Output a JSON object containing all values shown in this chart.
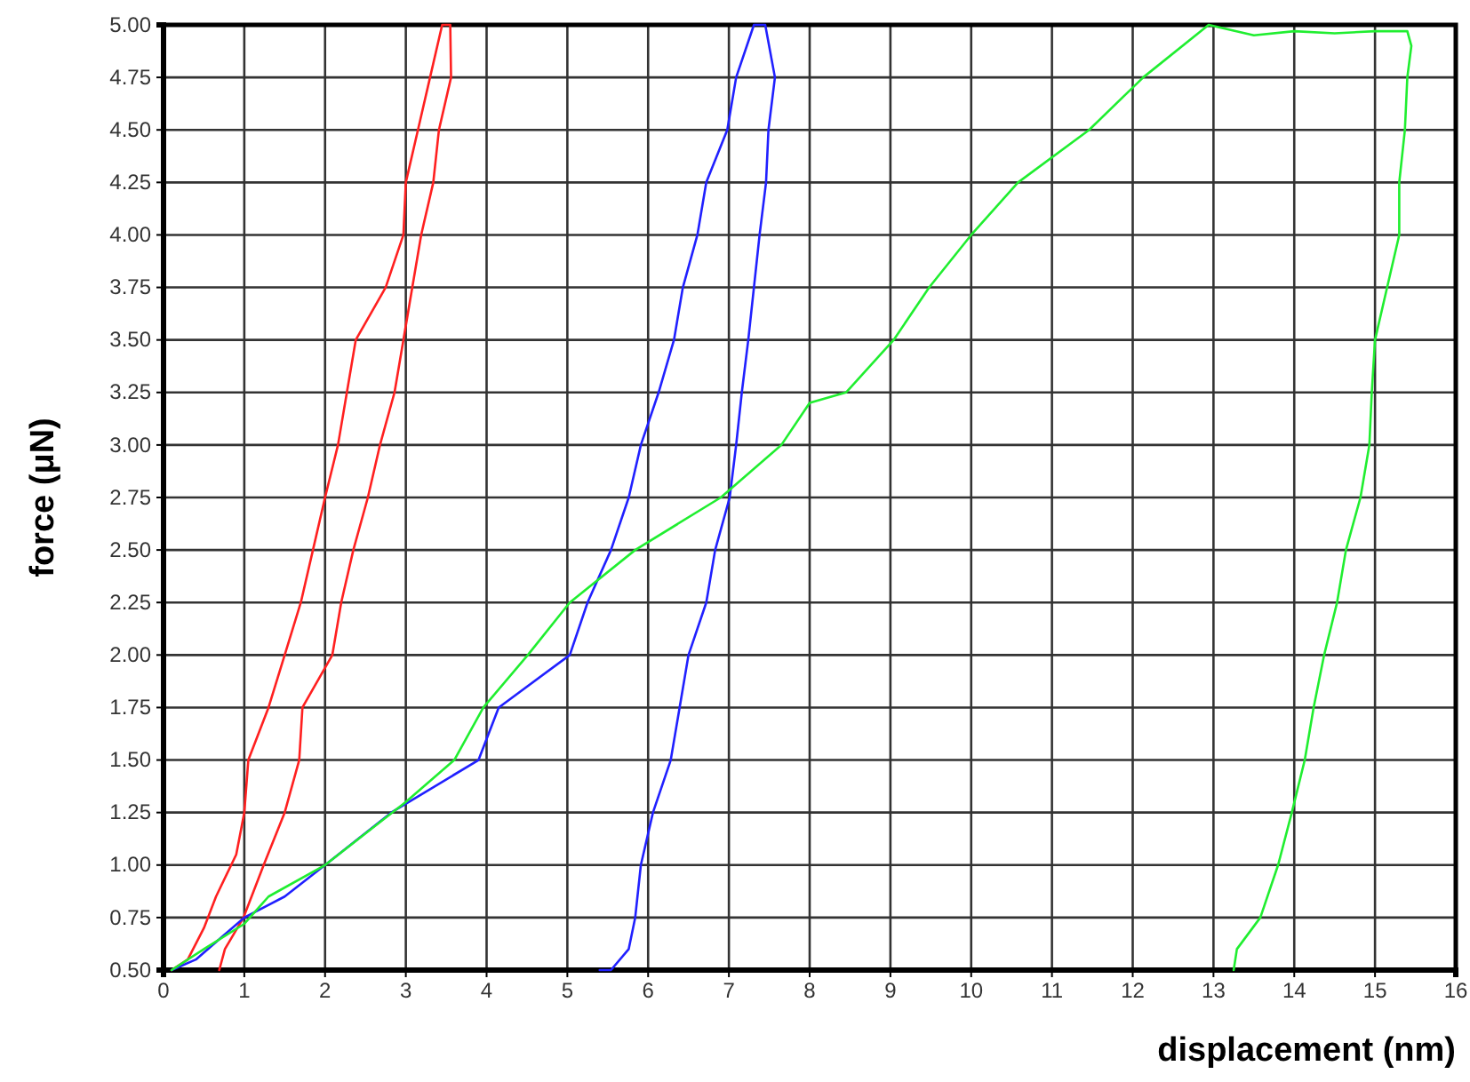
{
  "chart_data": {
    "type": "line",
    "xlabel": "displacement (nm)",
    "ylabel": "force (μN)",
    "xlim": [
      0,
      16
    ],
    "ylim": [
      0.5,
      5
    ],
    "xticks": [
      0,
      1,
      2,
      3,
      4,
      5,
      6,
      7,
      8,
      9,
      10,
      11,
      12,
      13,
      14,
      15,
      16
    ],
    "yticks": [
      {
        "value": 0.5,
        "label": "0.50"
      },
      {
        "value": 0.75,
        "label": "0.75"
      },
      {
        "value": 1,
        "label": "1.00"
      },
      {
        "value": 1.25,
        "label": "1.25"
      },
      {
        "value": 1.5,
        "label": "1.50"
      },
      {
        "value": 1.75,
        "label": "1.75"
      },
      {
        "value": 2,
        "label": "2.00"
      },
      {
        "value": 2.25,
        "label": "2.25"
      },
      {
        "value": 2.5,
        "label": "2.50"
      },
      {
        "value": 2.75,
        "label": "2.75"
      },
      {
        "value": 3,
        "label": "3.00"
      },
      {
        "value": 3.25,
        "label": "3.25"
      },
      {
        "value": 3.5,
        "label": "3.50"
      },
      {
        "value": 3.75,
        "label": "3.75"
      },
      {
        "value": 4,
        "label": "4.00"
      },
      {
        "value": 4.25,
        "label": "4.25"
      },
      {
        "value": 4.5,
        "label": "4.50"
      },
      {
        "value": 4.75,
        "label": "4.75"
      },
      {
        "value": 5,
        "label": "5.00"
      }
    ],
    "grid": true,
    "line_style": "solid",
    "marker": "none",
    "series": [
      {
        "color": "#ff2020",
        "x": [
          0.1,
          0.3,
          0.5,
          0.65,
          0.9,
          1.0,
          1.05,
          1.3,
          1.5,
          1.7,
          1.85,
          2.0,
          2.16,
          2.27,
          2.38,
          2.75,
          2.97,
          3.0,
          3.15,
          3.3,
          3.45,
          3.55,
          3.56,
          3.41,
          3.34,
          3.19,
          3.08,
          2.97,
          2.86,
          2.68,
          2.53,
          2.35,
          2.2,
          2.09,
          1.72,
          1.68,
          1.5,
          1.24,
          0.99,
          0.76,
          0.69
        ],
        "values": [
          0.5,
          0.55,
          0.7,
          0.85,
          1.05,
          1.25,
          1.5,
          1.75,
          2.0,
          2.25,
          2.5,
          2.75,
          3.0,
          3.25,
          3.5,
          3.75,
          4.0,
          4.25,
          4.5,
          4.75,
          5.0,
          5.0,
          4.75,
          4.5,
          4.25,
          4.0,
          3.75,
          3.5,
          3.25,
          3.0,
          2.75,
          2.5,
          2.25,
          2.0,
          1.75,
          1.5,
          1.25,
          1.0,
          0.75,
          0.6,
          0.5
        ]
      },
      {
        "color": "#2020ff",
        "x": [
          0.1,
          0.4,
          0.7,
          1.0,
          1.5,
          2.0,
          2.82,
          3.9,
          4.15,
          5.03,
          5.25,
          5.54,
          5.76,
          5.91,
          6.13,
          6.32,
          6.43,
          6.61,
          6.72,
          6.98,
          7.09,
          7.31,
          7.45,
          7.57,
          7.49,
          7.46,
          7.38,
          7.31,
          7.24,
          7.16,
          7.09,
          7.01,
          6.83,
          6.72,
          6.5,
          6.39,
          6.28,
          6.06,
          5.91,
          5.84,
          5.76,
          5.54,
          5.4
        ],
        "values": [
          0.5,
          0.55,
          0.65,
          0.75,
          0.85,
          1.0,
          1.25,
          1.5,
          1.75,
          2.0,
          2.25,
          2.5,
          2.75,
          3.0,
          3.25,
          3.5,
          3.75,
          4.0,
          4.25,
          4.5,
          4.75,
          5.0,
          5.0,
          4.75,
          4.5,
          4.25,
          4.0,
          3.75,
          3.5,
          3.25,
          3.0,
          2.75,
          2.5,
          2.25,
          2.0,
          1.75,
          1.5,
          1.25,
          1.0,
          0.75,
          0.6,
          0.5,
          0.5
        ]
      },
      {
        "color": "#20ee30",
        "x": [
          0.1,
          0.5,
          1.0,
          1.3,
          2.0,
          2.5,
          3.0,
          3.6,
          3.96,
          4.51,
          5.03,
          5.84,
          6.9,
          7.65,
          8.0,
          8.45,
          9.04,
          9.48,
          10.0,
          10.58,
          11.46,
          12.13,
          12.94,
          13.5,
          14.0,
          14.5,
          15.0,
          15.4,
          15.45,
          15.4,
          15.37,
          15.3,
          15.3,
          15.15,
          15.0,
          14.96,
          14.93,
          14.82,
          14.64,
          14.53,
          14.37,
          14.24,
          14.13,
          13.97,
          13.8,
          13.58,
          13.29,
          13.25
        ],
        "values": [
          0.5,
          0.6,
          0.72,
          0.85,
          1.0,
          1.15,
          1.3,
          1.5,
          1.75,
          2.0,
          2.25,
          2.5,
          2.75,
          3.0,
          3.2,
          3.25,
          3.5,
          3.75,
          4.0,
          4.25,
          4.5,
          4.75,
          5.0,
          4.95,
          4.97,
          4.96,
          4.97,
          4.97,
          4.9,
          4.75,
          4.5,
          4.25,
          4.0,
          3.75,
          3.5,
          3.25,
          3.0,
          2.75,
          2.5,
          2.25,
          2.0,
          1.75,
          1.5,
          1.25,
          1.0,
          0.75,
          0.6,
          0.5
        ]
      }
    ]
  }
}
